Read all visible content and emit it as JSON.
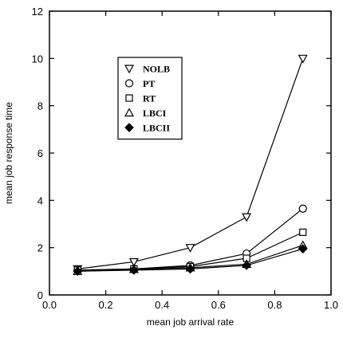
{
  "chart_data": {
    "type": "line",
    "title": "",
    "xlabel": "mean job arrival rate",
    "ylabel": "mean job response time",
    "xlim": [
      0.0,
      1.0
    ],
    "ylim": [
      0,
      12
    ],
    "xticks": [
      "0.0",
      "0.2",
      "0.4",
      "0.6",
      "0.8",
      "1.0"
    ],
    "yticks": [
      "0",
      "2",
      "4",
      "6",
      "8",
      "10",
      "12"
    ],
    "x": [
      0.1,
      0.3,
      0.5,
      0.7,
      0.9
    ],
    "grid": false,
    "legend_position": "upper-left-center",
    "series": [
      {
        "name": "NOLB",
        "marker": "triangle-down-open",
        "values": [
          1.1,
          1.4,
          2.0,
          3.3,
          10.0
        ]
      },
      {
        "name": "PT",
        "marker": "circle-open",
        "values": [
          1.05,
          1.1,
          1.25,
          1.75,
          3.65
        ]
      },
      {
        "name": "RT",
        "marker": "square-open",
        "values": [
          1.05,
          1.1,
          1.2,
          1.55,
          2.65
        ]
      },
      {
        "name": "LBCI",
        "marker": "triangle-up-open",
        "values": [
          1.0,
          1.08,
          1.15,
          1.3,
          2.1
        ]
      },
      {
        "name": "LBCII",
        "marker": "diamond-filled",
        "values": [
          1.0,
          1.05,
          1.1,
          1.25,
          1.95
        ]
      }
    ]
  }
}
